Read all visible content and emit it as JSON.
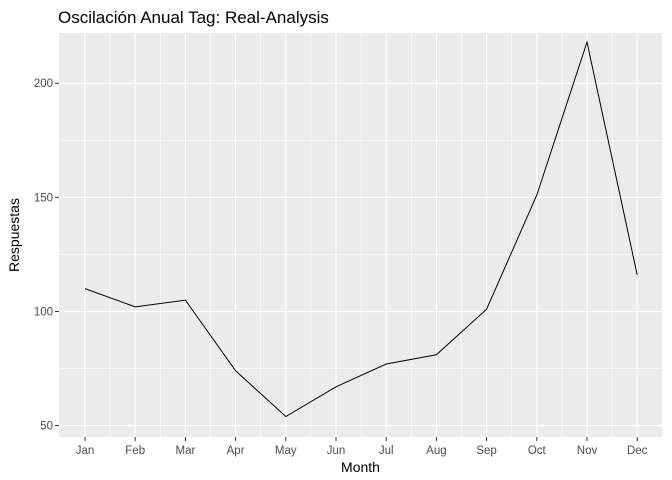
{
  "chart_data": {
    "type": "line",
    "title": "Oscilación Anual Tag: Real-Analysis",
    "xlabel": "Month",
    "ylabel": "Respuestas",
    "categories": [
      "Jan",
      "Feb",
      "Mar",
      "Apr",
      "May",
      "Jun",
      "Jul",
      "Aug",
      "Sep",
      "Oct",
      "Nov",
      "Dec"
    ],
    "values": [
      110,
      102,
      105,
      74,
      54,
      67,
      77,
      81,
      101,
      151,
      218,
      116
    ],
    "ylim": [
      45,
      222
    ],
    "yticks": [
      50,
      100,
      150,
      200
    ],
    "grid": true,
    "legend": "none",
    "colors": {
      "panel": "#ebebeb",
      "grid": "#ffffff",
      "line": "#000000",
      "tick": "#333333"
    }
  }
}
